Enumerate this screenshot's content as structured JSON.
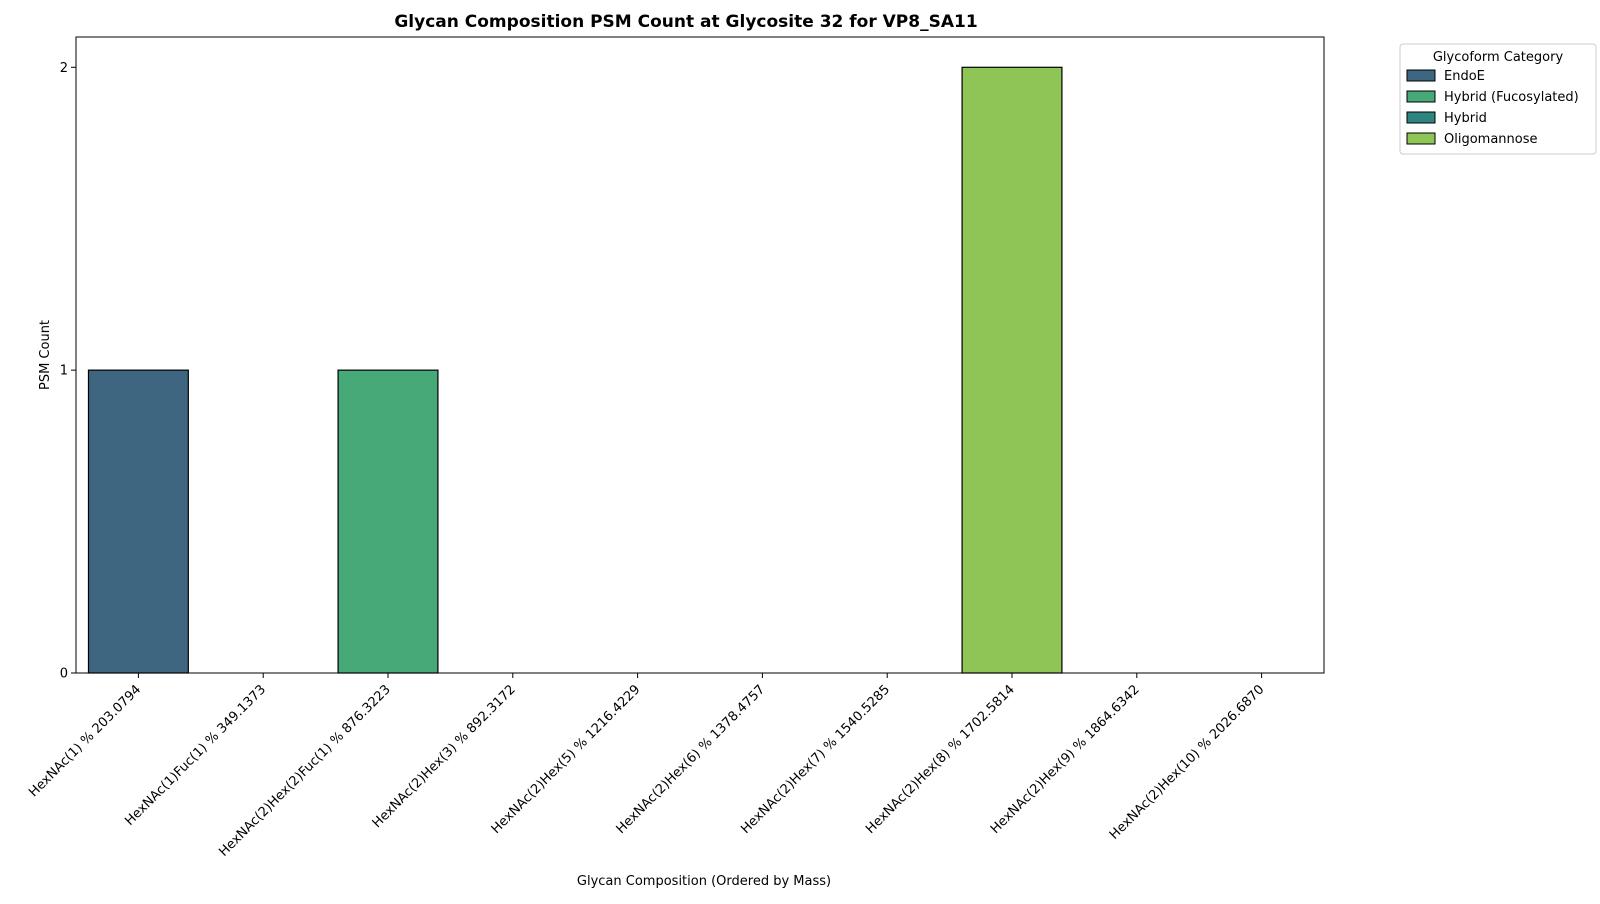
{
  "chart_data": {
    "type": "bar",
    "title": "Glycan Composition PSM Count at Glycosite 32 for VP8_SA11",
    "xlabel": "Glycan Composition (Ordered by Mass)",
    "ylabel": "PSM Count",
    "ylim": [
      0,
      2.1
    ],
    "yticks": [
      0,
      1,
      2
    ],
    "grid": false,
    "categories": [
      "HexNAc(1) % 203.0794",
      "HexNAc(1)Fuc(1) % 349.1373",
      "HexNAc(2)Hex(2)Fuc(1) % 876.3223",
      "HexNAc(2)Hex(3) % 892.3172",
      "HexNAc(2)Hex(5) % 1216.4229",
      "HexNAc(2)Hex(6) % 1378.4757",
      "HexNAc(2)Hex(7) % 1540.5285",
      "HexNAc(2)Hex(8) % 1702.5814",
      "HexNAc(2)Hex(9) % 1864.6342",
      "HexNAc(2)Hex(10) % 2026.6870"
    ],
    "values": [
      1,
      0,
      1,
      0,
      0,
      0,
      0,
      2,
      0,
      0
    ],
    "bar_categories": [
      "EndoE",
      null,
      "Hybrid (Fucosylated)",
      null,
      null,
      null,
      null,
      "Oligomannose",
      null,
      null
    ],
    "legend": {
      "title": "Glycoform Category",
      "placement": "outside-top-right",
      "entries": [
        {
          "name": "EndoE",
          "color": "#3f6680"
        },
        {
          "name": "Hybrid (Fucosylated)",
          "color": "#47a878"
        },
        {
          "name": "Hybrid",
          "color": "#2e8580"
        },
        {
          "name": "Oligomannose",
          "color": "#8fc456"
        }
      ]
    }
  }
}
